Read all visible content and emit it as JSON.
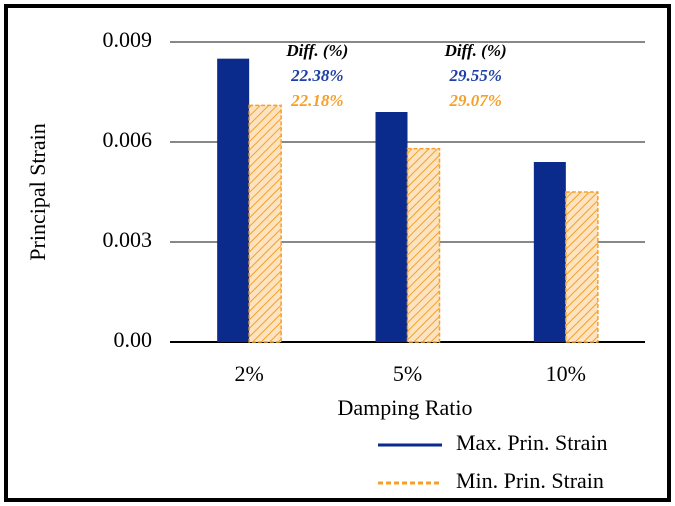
{
  "chart_data": {
    "type": "bar",
    "categories": [
      "2%",
      "5%",
      "10%"
    ],
    "series": [
      {
        "name": "Max. Prin. Strain",
        "color": "#0a2a8c",
        "values": [
          0.0085,
          0.0069,
          0.0054
        ]
      },
      {
        "name": "Min. Prin. Strain",
        "color": "#f5a02a",
        "values": [
          0.0071,
          0.0058,
          0.0045
        ]
      }
    ],
    "y_label": "Principal Strain",
    "x_label": "Damping Ratio",
    "ylim": [
      0,
      0.0095
    ],
    "yticks": [
      {
        "value": 0,
        "label": "0.00"
      },
      0.003,
      0.006,
      0.009
    ],
    "grid": true,
    "legend": "bottom-right",
    "annotations": [
      {
        "header": "Diff. (%)",
        "lines": [
          {
            "text": "22.38%",
            "color": "#1f3fa8"
          },
          {
            "text": "22.18%",
            "color": "#f5a02a"
          }
        ]
      },
      {
        "header": "Diff. (%)",
        "lines": [
          {
            "text": "29.55%",
            "color": "#1f3fa8"
          },
          {
            "text": "29.07%",
            "color": "#f5a02a"
          }
        ]
      }
    ]
  }
}
